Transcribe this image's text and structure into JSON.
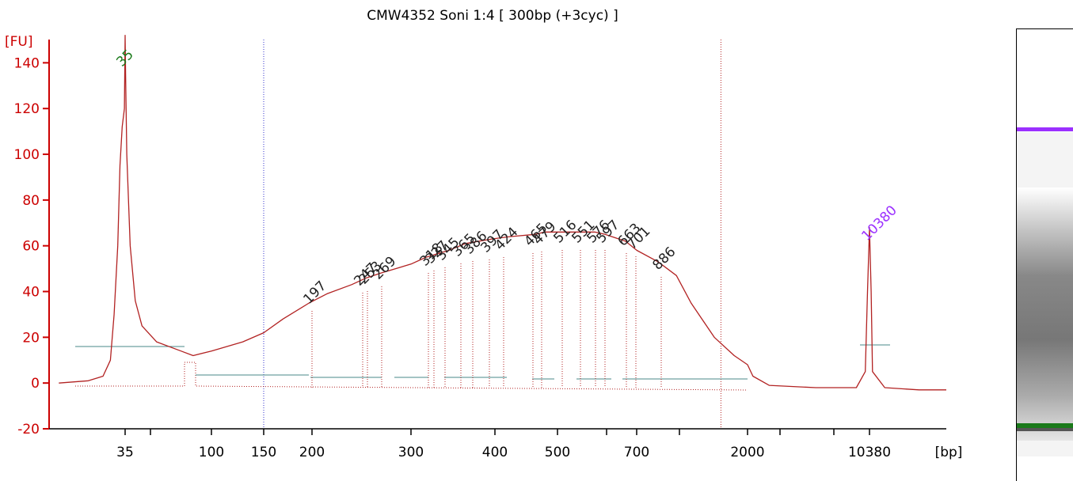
{
  "chart_data": {
    "type": "line",
    "title": "CMW4352 Soni 1:4  [ 300bp (+3cyc) ]",
    "ylabel": "[FU]",
    "xlabel": "[bp]",
    "ylim": [
      -20,
      155
    ],
    "y_ticks": [
      -20,
      0,
      20,
      40,
      60,
      80,
      100,
      120,
      140
    ],
    "x_ticks": [
      {
        "label": "35"
      },
      {
        "label": ""
      },
      {
        "label": "100"
      },
      {
        "label": "150"
      },
      {
        "label": "200"
      },
      {
        "label": "300"
      },
      {
        "label": "400"
      },
      {
        "label": "500"
      },
      {
        "label": ""
      },
      {
        "label": "700"
      },
      {
        "label": ""
      },
      {
        "label": "2000"
      },
      {
        "label": ""
      },
      {
        "label": ""
      },
      {
        "label": "10380"
      }
    ],
    "series": [
      {
        "color": "#b22222",
        "points": [
          [
            "26",
            0
          ],
          [
            "30",
            1
          ],
          [
            "32",
            3
          ],
          [
            "33",
            10
          ],
          [
            "33.5",
            30
          ],
          [
            "34",
            60
          ],
          [
            "34.3",
            95
          ],
          [
            "34.6",
            112
          ],
          [
            "34.9",
            120
          ],
          [
            "35",
            152
          ],
          [
            "35.3",
            135
          ],
          [
            "36",
            100
          ],
          [
            "38",
            60
          ],
          [
            "41",
            36
          ],
          [
            "45",
            25
          ],
          [
            "55",
            18
          ],
          [
            "75",
            14
          ],
          [
            "85",
            12
          ],
          [
            "100",
            14
          ],
          [
            "130",
            18
          ],
          [
            "150",
            22
          ],
          [
            "170",
            28
          ],
          [
            "197",
            35
          ],
          [
            "215",
            39
          ],
          [
            "240",
            43
          ],
          [
            "255",
            46
          ],
          [
            "269",
            48
          ],
          [
            "300",
            52
          ],
          [
            "318",
            55
          ],
          [
            "345",
            58
          ],
          [
            "365",
            61
          ],
          [
            "397",
            63
          ],
          [
            "424",
            64
          ],
          [
            "465",
            65
          ],
          [
            "479",
            66
          ],
          [
            "516",
            66
          ],
          [
            "551",
            66
          ],
          [
            "576",
            66
          ],
          [
            "597",
            65
          ],
          [
            "663",
            62
          ],
          [
            "701",
            58
          ],
          [
            "800",
            53
          ],
          [
            "886",
            47
          ],
          [
            "1100",
            35
          ],
          [
            "1500",
            20
          ],
          [
            "1800",
            12
          ],
          [
            "2000",
            8
          ],
          [
            "2500",
            3
          ],
          [
            "4000",
            -1
          ],
          [
            "7000",
            -2
          ],
          [
            "9500",
            -2
          ],
          [
            "10100",
            5
          ],
          [
            "10250",
            40
          ],
          [
            "10380",
            68
          ],
          [
            "10500",
            40
          ],
          [
            "10600",
            5
          ],
          [
            "11500",
            -2
          ],
          [
            "14000",
            -3
          ],
          [
            "16000",
            -3
          ]
        ]
      }
    ],
    "peaks": [
      {
        "label": "35",
        "color": "#1a7a1a"
      },
      {
        "label": "197",
        "color": "#222222"
      },
      {
        "label": "247",
        "color": "#222222"
      },
      {
        "label": "253",
        "color": "#222222"
      },
      {
        "label": "269",
        "color": "#222222"
      },
      {
        "label": "318",
        "color": "#222222"
      },
      {
        "label": "327",
        "color": "#222222"
      },
      {
        "label": "345",
        "color": "#222222"
      },
      {
        "label": "365",
        "color": "#222222"
      },
      {
        "label": "386",
        "color": "#222222"
      },
      {
        "label": "397",
        "color": "#222222"
      },
      {
        "label": "424",
        "color": "#222222"
      },
      {
        "label": "465",
        "color": "#222222"
      },
      {
        "label": "479",
        "color": "#222222"
      },
      {
        "label": "516",
        "color": "#222222"
      },
      {
        "label": "551",
        "color": "#222222"
      },
      {
        "label": "576",
        "color": "#222222"
      },
      {
        "label": "597",
        "color": "#222222"
      },
      {
        "label": "663",
        "color": "#222222"
      },
      {
        "label": "701",
        "color": "#222222"
      },
      {
        "label": "886",
        "color": "#222222"
      },
      {
        "label": "10380",
        "color": "#9b30ff"
      }
    ],
    "markers": [
      {
        "style": "blue-dotted",
        "x": "150"
      },
      {
        "style": "red-dotted",
        "x": "1600"
      }
    ],
    "grid": false,
    "colors": {
      "axis": "#cc0000",
      "trace": "#b22222",
      "baseline": "#4a8a8a",
      "lower_marker": "#1a7a1a",
      "upper_marker": "#9b30ff"
    }
  },
  "gel": {
    "upper_band_color": "#9b30ff",
    "lower_band_color": "#1a7a1a",
    "smear_color": "#808080"
  }
}
